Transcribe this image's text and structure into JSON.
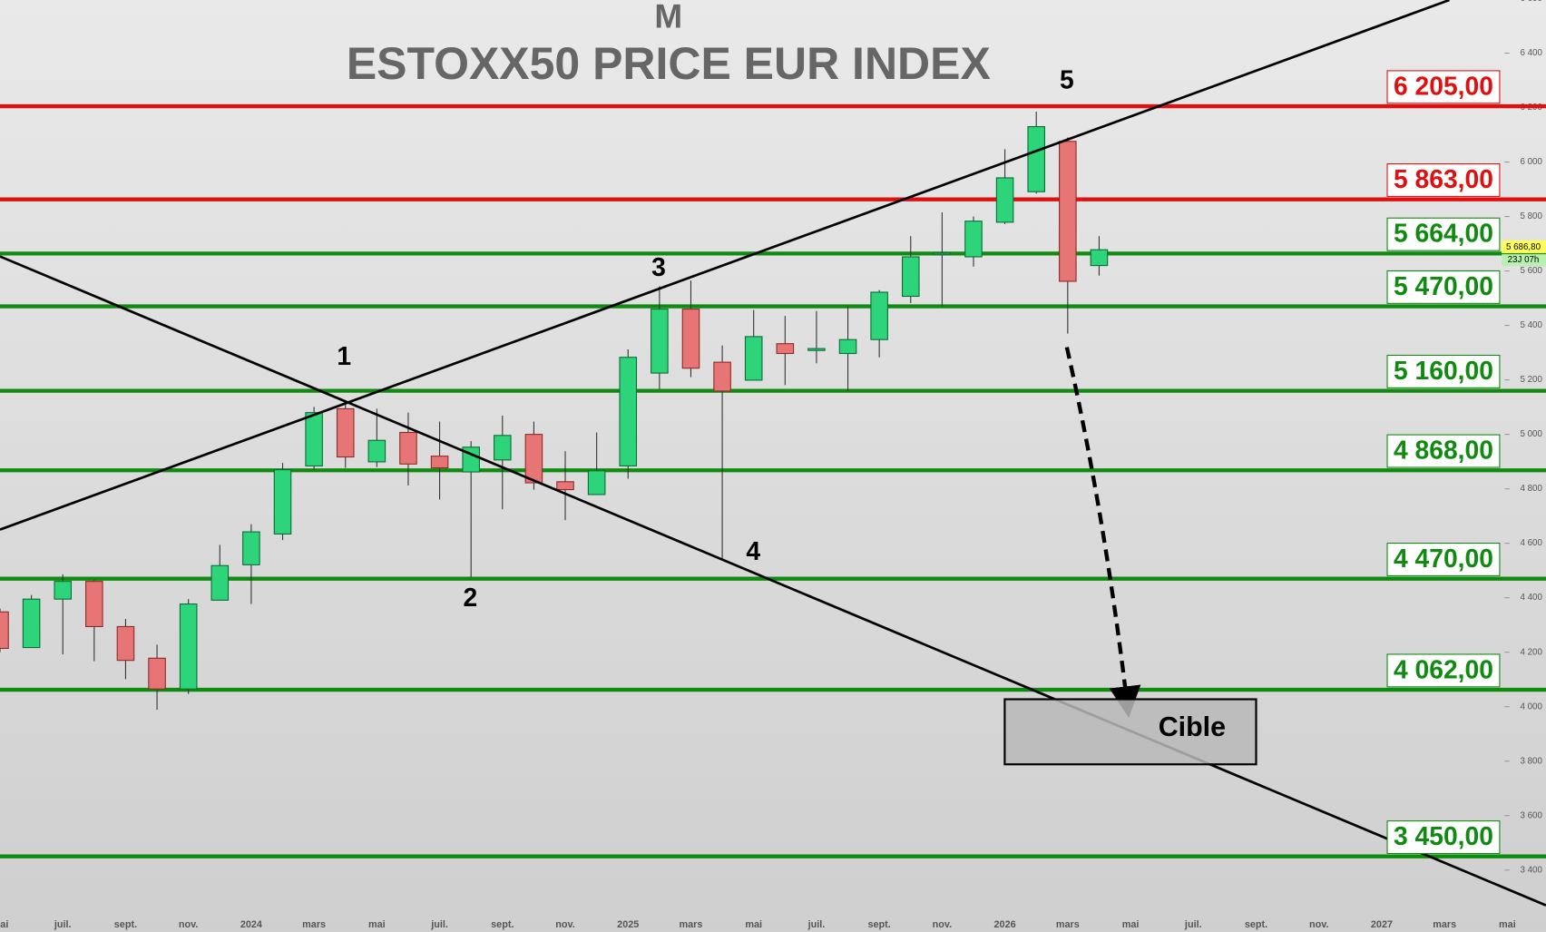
{
  "chart_data": {
    "type": "candlestick",
    "subtitle": "M",
    "title": "ESTOXX50 PRICE EUR INDEX",
    "categories": [
      "mai",
      null,
      "juil.",
      null,
      "sept.",
      null,
      "nov.",
      null,
      "2024",
      null,
      "mars",
      null,
      "mai",
      null,
      "juil.",
      null,
      "sept.",
      null,
      "nov.",
      null,
      "2025",
      null,
      "mars",
      null,
      "mai",
      null,
      "juil.",
      null,
      "sept.",
      null,
      "nov.",
      null,
      "2026",
      null,
      "mars",
      null,
      "mai",
      null,
      "juil.",
      null,
      "sept.",
      null,
      "nov.",
      null,
      "2027",
      null,
      "mars",
      null,
      "mai"
    ],
    "open": [
      4348,
      4217,
      4395,
      4460,
      4294,
      4178,
      4065,
      4391,
      4521,
      4634,
      4884,
      5094,
      4899,
      5007,
      4920,
      4862,
      4906,
      5000,
      4826,
      4779,
      4884,
      5225,
      5460,
      5265,
      5199,
      5333,
      5308,
      5297,
      5348,
      5507,
      5660,
      5652,
      5779,
      5891,
      6076,
      5620,
      null,
      null,
      null,
      null,
      null,
      null,
      null,
      null,
      null,
      null,
      null,
      null,
      null
    ],
    "high": [
      4360,
      4410,
      4486,
      4465,
      4322,
      4228,
      4395,
      4594,
      4670,
      4895,
      5101,
      5116,
      5094,
      5080,
      5047,
      4975,
      5069,
      5047,
      4938,
      5007,
      5312,
      5544,
      5565,
      5326,
      5457,
      5435,
      5453,
      5471,
      5530,
      5728,
      5815,
      5800,
      6047,
      6185,
      6090,
      5728,
      null,
      null,
      null,
      null,
      null,
      null,
      null,
      null,
      null,
      null,
      null,
      null,
      null
    ],
    "low": [
      4200,
      4217,
      4192,
      4167,
      4101,
      3989,
      4047,
      4391,
      4377,
      4612,
      4870,
      4877,
      4880,
      4812,
      4761,
      4475,
      4725,
      4797,
      4685,
      4779,
      4837,
      5167,
      5210,
      4536,
      5199,
      5181,
      5261,
      5159,
      5283,
      5482,
      5471,
      5616,
      5772,
      5884,
      5370,
      5583,
      null,
      null,
      null,
      null,
      null,
      null,
      null,
      null,
      null,
      null,
      null,
      null,
      null
    ],
    "close": [
      4214,
      4395,
      4460,
      4294,
      4170,
      4065,
      4377,
      4518,
      4642,
      4870,
      5080,
      4917,
      4978,
      4891,
      4877,
      4953,
      4996,
      4822,
      4797,
      4866,
      5283,
      5460,
      5243,
      5159,
      5359,
      5297,
      5315,
      5348,
      5522,
      5652,
      5665,
      5783,
      5942,
      6130,
      5562,
      5678,
      null,
      null,
      null,
      null,
      null,
      null,
      null,
      null,
      null,
      null,
      null,
      null,
      null
    ],
    "up_color": "#2ed47a",
    "down_color": "#e87575",
    "ylim": [
      3245,
      6595
    ],
    "yticks": [
      {
        "value": 3400,
        "label": "3 400"
      },
      {
        "value": 3600,
        "label": "3 600"
      },
      {
        "value": 3800,
        "label": "3 800"
      },
      {
        "value": 4000,
        "label": "4 000"
      },
      {
        "value": 4200,
        "label": "4 200"
      },
      {
        "value": 4400,
        "label": "4 400"
      },
      {
        "value": 4600,
        "label": "4 600"
      },
      {
        "value": 4800,
        "label": "4 800"
      },
      {
        "value": 5000,
        "label": "5 000"
      },
      {
        "value": 5200,
        "label": "5 200"
      },
      {
        "value": 5400,
        "label": "5 400"
      },
      {
        "value": 5600,
        "label": "5 600"
      },
      {
        "value": 5800,
        "label": "5 800"
      },
      {
        "value": 6000,
        "label": "6 000"
      },
      {
        "value": 6200,
        "label": "6 200"
      },
      {
        "value": 6400,
        "label": "6 400"
      },
      {
        "value": 6600,
        "label": "6 600"
      }
    ],
    "levels": [
      {
        "value": 6205,
        "label": "6 205,00",
        "color": "#e01010"
      },
      {
        "value": 5863,
        "label": "5 863,00",
        "color": "#e01010"
      },
      {
        "value": 5664,
        "label": "5 664,00",
        "color": "#108a10"
      },
      {
        "value": 5470,
        "label": "5 470,00",
        "color": "#108a10"
      },
      {
        "value": 5160,
        "label": "5 160,00",
        "color": "#108a10"
      },
      {
        "value": 4868,
        "label": "4 868,00",
        "color": "#108a10"
      },
      {
        "value": 4470,
        "label": "4 470,00",
        "color": "#108a10"
      },
      {
        "value": 4062,
        "label": "4 062,00",
        "color": "#108a10"
      },
      {
        "value": 3450,
        "label": "3 450,00",
        "color": "#108a10"
      }
    ],
    "last_price": {
      "value": 5686.8,
      "label": "5 686,80"
    },
    "countdown": "23J 07h",
    "waves": [
      "1",
      "2",
      "3",
      "4",
      "5"
    ],
    "target_label": "Cible"
  }
}
